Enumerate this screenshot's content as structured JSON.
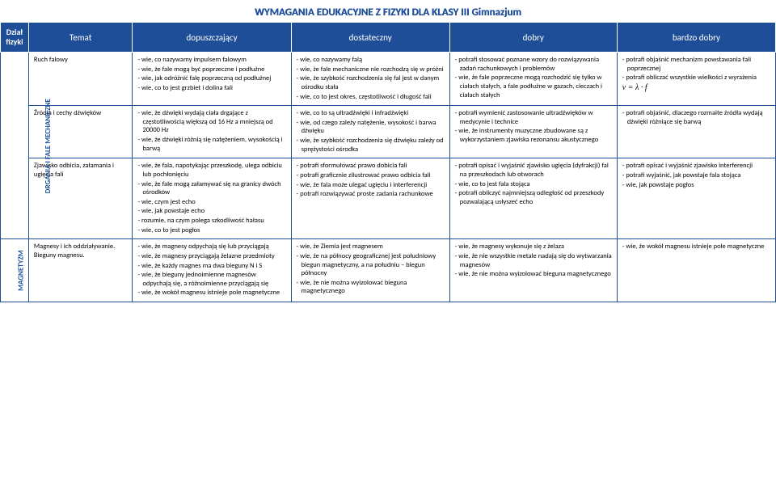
{
  "title": "WYMAGANIA EDUKACYJNE Z FIZYKI DLA KLASY III Gimnazjum",
  "headers": {
    "section": "Dział fizyki",
    "topic": "Temat",
    "c1": "dopuszczający",
    "c2": "dostateczny",
    "c3": "dobry",
    "c4": "bardzo dobry"
  },
  "sections": [
    {
      "label": "DRGANIA I FALE MECHANICZNE"
    },
    {
      "label": "MAGNETYZM"
    }
  ],
  "rows": [
    {
      "topic": "Ruch falowy",
      "c1": [
        "wie, co nazywamy impulsem falowym",
        "wie, że fale mogą być poprzeczne i podłużne",
        "wie, jak odróżnić falę poprzeczną od podłużnej",
        "wie, co to jest grzbiet i dolina fali"
      ],
      "c2": [
        "wie, co nazywamy falą",
        "wie, że fale mechaniczne nie rozchodzą się w próżni",
        "wie, że szybkość rozchodzenia się fal jest w danym ośrodku stała",
        "wie, co to jest okres, częstotliwość i długość fali"
      ],
      "c3": [
        "potrafi stosować poznane wzory do rozwiązywania zadań rachunkowych i problemów",
        "wie, że fale poprzeczne mogą rozchodzić się tylko w ciałach stałych, a fale podłużne w gazach, cieczach i ciałach stałych"
      ],
      "c4": [
        "potrafi objaśnić mechanizm powstawania fali poprzecznej",
        "potrafi obliczać wszystkie wielkości z wyrażenia"
      ],
      "formula": "v = λ · f"
    },
    {
      "topic": "Źródła i cechy dźwięków",
      "c1": [
        "wie, że dźwięki wydają ciała drgające z częstotliwością większą od 16 Hz a mniejszą od 20000 Hz",
        "wie, że dźwięki różnią się natężeniem, wysokością i barwą"
      ],
      "c2": [
        "wie, co to są ultradźwięki i infradźwięki",
        "wie, od czego zależy natężenie, wysokość i barwa dźwięku",
        "wie, że szybkość rozchodzenia się dźwięku zależy od sprężystości ośrodka"
      ],
      "c3": [
        "potrafi wymienić zastosowanie ultradźwięków w medycynie i technice",
        "wie, że instrumenty muzyczne zbudowane są z wykorzystaniem zjawiska rezonansu akustycznego"
      ],
      "c4": [
        "potrafi objaśnić, dlaczego rozmaite źródła wydają dźwięki różniące się barwą"
      ]
    },
    {
      "topic": "Zjawisko odbicia, załamania i ugięcia fali",
      "c1": [
        "wie, że fala, napotykając przeszkodę, ulega odbiciu lub pochłonięciu",
        "wie, że fale mogą załamywać się na granicy dwóch ośrodków",
        "wie, czym jest echo",
        "wie, jak powstaje echo",
        "rozumie, na czym polega szkodliwość hałasu",
        "wie, co to jest pogłos"
      ],
      "c2": [
        "potrafi sformułować prawo dobicia fali",
        "potrafi graficznie zilustrować prawo odbicia fali",
        "wie, że fala może ulegać ugięciu i interferencji",
        "potrafi rozwiązywać proste zadania rachunkowe"
      ],
      "c3": [
        "potrafi opisać i wyjaśnić zjawisko ugięcia (dyfrakcji) fal na przeszkodach lub otworach",
        "wie, co to jest fala stojąca",
        "potrafi obliczyć najmniejszą odległość od przeszkody pozwalającą usłyszeć echo"
      ],
      "c4": [
        "potrafi opisać i wyjaśnić zjawisko interferencji",
        "potrafi wyjaśnić, jak powstaje fala stojąca",
        "wie, jak powstaje pogłos"
      ]
    },
    {
      "topic": "Magnesy i ich oddziaływanie. Bieguny magnesu.",
      "c1": [
        "wie, że magnesy odpychają się lub przyciągają",
        "wie, że magnesy przyciągają żelazne przedmioty",
        "wie, że każdy magnes ma dwa bieguny N i S",
        "wie, że bieguny jednoimienne magnesów odpychają się, a różnoimienne przyciągają się",
        "wie, że wokół magnesu istnieje pole magnetyczne"
      ],
      "c2": [
        "wie, że Ziemia jest magnesem",
        "wie, że na północy geograficznej jest południowy biegun magnetyczny, a na południu – biegun północny",
        "wie, że nie można wyizolować bieguna magnetycznego"
      ],
      "c3": [
        "wie, że magnesy wykonuje się z żelaza",
        "wie, że nie wszystkie metale nadają się do wytwarzania magnesów",
        "wie, że nie można wyizolować bieguna magnetycznego"
      ],
      "c4": [
        "wie, że wokół magnesu istnieje pole magnetyczne"
      ]
    }
  ]
}
